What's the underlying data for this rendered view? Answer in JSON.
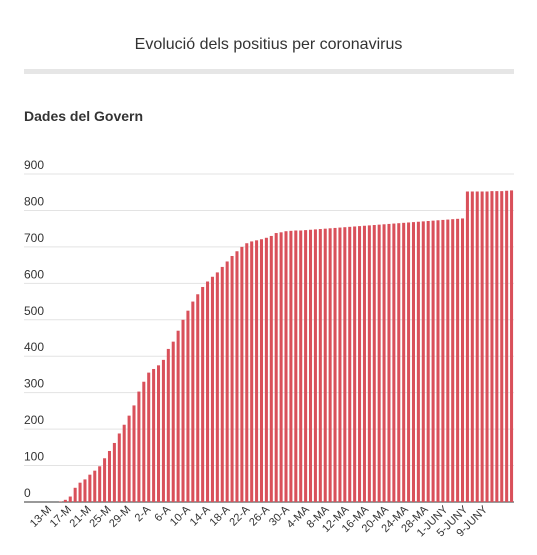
{
  "header": {
    "title": "Evolució dels positius per coronavirus",
    "subtitle": "Dades del Govern"
  },
  "chart_data": {
    "type": "bar",
    "title": "Evolució dels positius per coronavirus",
    "subtitle": "Dades del Govern",
    "xlabel": "",
    "ylabel": "",
    "ylim": [
      0,
      900
    ],
    "yticks": [
      0,
      100,
      200,
      300,
      400,
      500,
      600,
      700,
      800,
      900
    ],
    "grid": true,
    "bar_color": "#d9505a",
    "x_tick_labels": [
      "13-M",
      "17-M",
      "21-M",
      "25-M",
      "29-M",
      "2-A",
      "6-A",
      "10-A",
      "14-A",
      "18-A",
      "22-A",
      "26-A",
      "30-A",
      "4-MA",
      "8-MA",
      "12-MA",
      "16-MA",
      "20-MA",
      "24-MA",
      "28-MA",
      "1-JUNY",
      "5-JUNY",
      "9-JUNY"
    ],
    "values": [
      1,
      6,
      15,
      39,
      53,
      62,
      75,
      86,
      98,
      120,
      140,
      162,
      188,
      212,
      237,
      265,
      303,
      330,
      355,
      365,
      375,
      390,
      420,
      440,
      470,
      500,
      525,
      550,
      570,
      590,
      605,
      618,
      630,
      645,
      660,
      675,
      688,
      700,
      710,
      715,
      718,
      721,
      725,
      730,
      738,
      740,
      743,
      744,
      745,
      745,
      746,
      747,
      748,
      749,
      750,
      751,
      752,
      753,
      754,
      755,
      756,
      757,
      758,
      759,
      760,
      761,
      762,
      763,
      764,
      765,
      766,
      767,
      768,
      769,
      770,
      771,
      772,
      773,
      774,
      775,
      776,
      777,
      778,
      852,
      852,
      852,
      852,
      852,
      853,
      853,
      853,
      854,
      855
    ]
  }
}
